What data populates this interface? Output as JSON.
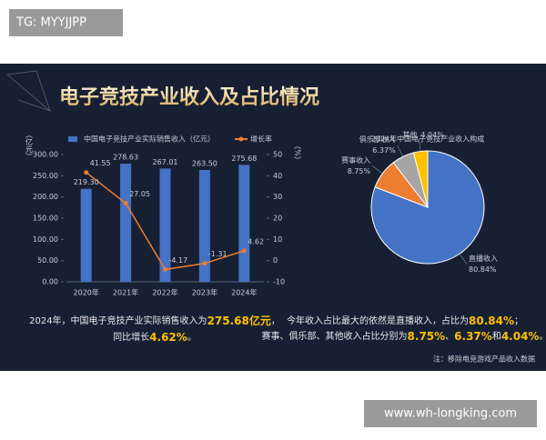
{
  "watermark_top": "TG: MYYJJPP",
  "title": "电子竞技产业收入及占比情况",
  "chart_data": [
    {
      "type": "bar",
      "categories": [
        "2020年",
        "2021年",
        "2022年",
        "2023年",
        "2024年"
      ],
      "series": [
        {
          "name": "中国电子竞技产业实际销售收入（亿元）",
          "color": "#4472c4",
          "values": [
            219.3,
            278.63,
            267.01,
            263.5,
            275.68
          ],
          "value_labels": [
            "219.30",
            "278.63",
            "267.01",
            "263.50",
            "275.68"
          ]
        },
        {
          "name": "增长率",
          "type": "line",
          "axis": "y2",
          "color": "#ed7d31",
          "values": [
            41.55,
            27.05,
            -4.17,
            -1.31,
            4.62
          ]
        }
      ],
      "ylabel": "（亿元）",
      "y2label": "（%）",
      "ylim": [
        0,
        300
      ],
      "yticks": [
        {
          "value": 0,
          "label": "0.00"
        },
        {
          "value": 50,
          "label": "50.00"
        },
        {
          "value": 100,
          "label": "100.00"
        },
        {
          "value": 150,
          "label": "150.00"
        },
        {
          "value": 200,
          "label": "200.00"
        },
        {
          "value": 250,
          "label": "250.00"
        },
        {
          "value": 300,
          "label": "300.00"
        }
      ],
      "y2lim": [
        -10,
        50
      ],
      "y2ticks": [
        -10,
        0,
        10,
        20,
        30,
        40,
        50
      ]
    },
    {
      "type": "pie",
      "title": "2024年中国电子竞技产业收入构成",
      "categories": [
        "直播收入",
        "赛事收入",
        "俱乐部收入",
        "其他"
      ],
      "values": [
        80.84,
        8.75,
        6.37,
        4.04
      ],
      "value_labels": [
        "80.84%",
        "8.75%",
        "6.37%",
        "4.04%"
      ],
      "colors": [
        "#4472c4",
        "#ed7d31",
        "#a5a5a5",
        "#ffc000"
      ]
    }
  ],
  "summary_left": {
    "line1": [
      "2024年，中国电子竞技产业实际销售收入为",
      "275.68亿元",
      "，"
    ],
    "line2": [
      "同比增长",
      "4.62%",
      "。"
    ]
  },
  "summary_right": {
    "line1": [
      "今年收入占比最大的依然是直播收入，占比为",
      "80.84%",
      "；"
    ],
    "line2": [
      "赛事、俱乐部、其他收入占比分别为",
      "8.75%",
      "、",
      "6.37%",
      "和",
      "4.04%",
      "。"
    ]
  },
  "note": "注：移除电竞游戏产品收入数据",
  "watermark_bottom": "www.wh-longking.com"
}
